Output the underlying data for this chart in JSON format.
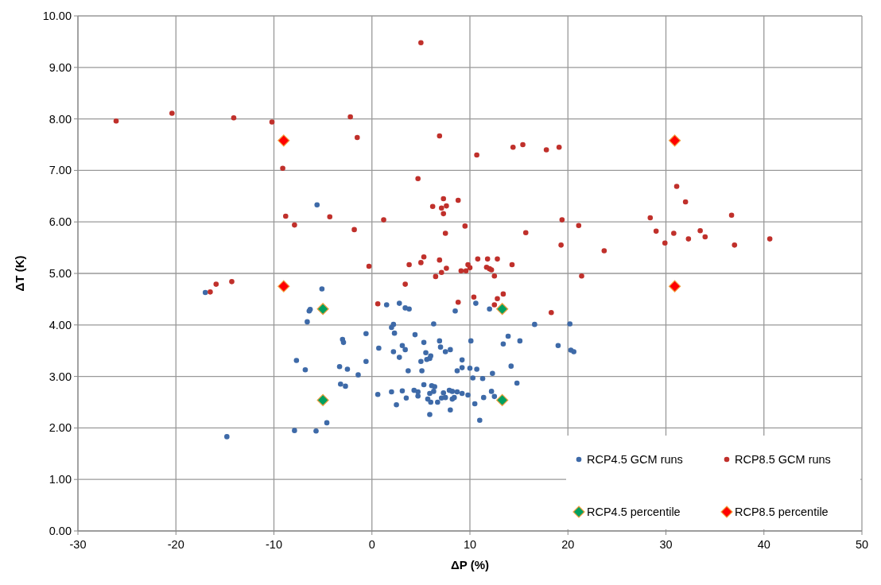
{
  "chart_data": {
    "type": "scatter",
    "xlabel": "ΔP (%)",
    "ylabel": "ΔT (K)",
    "xlim": [
      -30,
      50
    ],
    "xticks": [
      -30,
      -20,
      -10,
      0,
      10,
      20,
      30,
      40,
      50
    ],
    "ylim": [
      0,
      10
    ],
    "yticks": [
      {
        "value": 0,
        "label": "0.00"
      },
      {
        "value": 1,
        "label": "1.00"
      },
      {
        "value": 2,
        "label": "2.00"
      },
      {
        "value": 3,
        "label": "3.00"
      },
      {
        "value": 4,
        "label": "4.00"
      },
      {
        "value": 5,
        "label": "5.00"
      },
      {
        "value": 6,
        "label": "6.00"
      },
      {
        "value": 7,
        "label": "7.00"
      },
      {
        "value": 8,
        "label": "8.00"
      },
      {
        "value": 9,
        "label": "9.00"
      },
      {
        "value": 10,
        "label": "10.00"
      }
    ],
    "grid": true,
    "legend": "bottom right",
    "series": [
      {
        "name": "RCP4.5 GCM runs",
        "color": "#3e6aa8",
        "marker": "circle",
        "x": [
          -17.0,
          -5.1,
          -6.4,
          -6.3,
          -6.6,
          1.5,
          2.8,
          3.4,
          3.8,
          8.5,
          10.6,
          12.0,
          2.2,
          2.0,
          6.3,
          16.6,
          20.2,
          -0.6,
          -3.0,
          -2.9,
          2.3,
          4.4,
          5.3,
          6.9,
          10.1,
          13.9,
          15.1,
          13.4,
          19.0,
          20.3,
          20.6,
          0.7,
          2.2,
          3.1,
          3.4,
          2.8,
          5.5,
          6.0,
          5.9,
          5.6,
          7.0,
          7.5,
          8.0,
          5.0,
          9.2,
          9.2,
          8.7,
          10.0,
          10.7,
          12.3,
          14.2,
          10.3,
          11.3,
          14.8,
          3.7,
          5.1,
          -7.7,
          -6.8,
          -3.3,
          -2.5,
          -0.6,
          -1.4,
          -3.2,
          -2.7,
          0.6,
          2.0,
          3.1,
          3.5,
          2.5,
          4.3,
          4.7,
          4.7,
          5.3,
          5.9,
          6.1,
          6.4,
          6.3,
          5.7,
          6.0,
          6.7,
          7.3,
          7.1,
          7.5,
          7.9,
          8.2,
          8.7,
          8.2,
          8.4,
          9.2,
          9.8,
          5.9,
          8.0,
          10.5,
          11.4,
          12.2,
          12.5,
          11.0,
          -4.6,
          -7.9,
          -5.7,
          -14.8,
          -5.6
        ],
        "values": [
          4.63,
          4.7,
          4.27,
          4.3,
          4.06,
          4.39,
          4.42,
          4.33,
          4.31,
          4.27,
          4.42,
          4.31,
          4.01,
          3.95,
          4.02,
          4.01,
          4.02,
          3.83,
          3.72,
          3.66,
          3.84,
          3.81,
          3.66,
          3.69,
          3.69,
          3.78,
          3.69,
          3.63,
          3.6,
          3.51,
          3.48,
          3.55,
          3.48,
          3.6,
          3.52,
          3.37,
          3.46,
          3.4,
          3.35,
          3.33,
          3.57,
          3.48,
          3.52,
          3.29,
          3.32,
          3.17,
          3.11,
          3.16,
          3.14,
          3.06,
          3.2,
          2.97,
          2.96,
          2.87,
          3.11,
          3.11,
          3.31,
          3.13,
          3.19,
          3.14,
          3.29,
          3.03,
          2.85,
          2.81,
          2.65,
          2.7,
          2.72,
          2.58,
          2.45,
          2.73,
          2.7,
          2.62,
          2.84,
          2.67,
          2.82,
          2.8,
          2.71,
          2.56,
          2.5,
          2.5,
          2.68,
          2.58,
          2.59,
          2.73,
          2.71,
          2.7,
          2.56,
          2.59,
          2.67,
          2.64,
          2.26,
          2.35,
          2.47,
          2.59,
          2.71,
          2.61,
          2.15,
          2.1,
          1.95,
          1.94,
          1.83,
          6.33
        ]
      },
      {
        "name": "RCP8.5 GCM runs",
        "color": "#c0302b",
        "marker": "circle",
        "x": [
          -26.1,
          -20.4,
          -14.1,
          -10.2,
          -2.2,
          -1.5,
          -9.1,
          -8.8,
          -7.9,
          -4.3,
          -1.8,
          1.2,
          -0.3,
          -15.9,
          -16.5,
          -14.3,
          0.6,
          5.0,
          6.9,
          10.7,
          14.4,
          15.4,
          17.8,
          19.1,
          4.7,
          7.3,
          6.2,
          7.1,
          7.6,
          7.3,
          8.8,
          7.5,
          9.5,
          15.7,
          19.4,
          21.1,
          19.3,
          23.7,
          3.8,
          5.0,
          5.3,
          6.9,
          7.6,
          7.1,
          9.1,
          9.6,
          9.8,
          10.0,
          10.8,
          11.8,
          12.8,
          11.7,
          12.0,
          12.2,
          14.3,
          6.5,
          12.5,
          21.4,
          3.4,
          8.8,
          10.4,
          12.8,
          13.4,
          12.5,
          18.3,
          31.1,
          32.0,
          28.4,
          29.0,
          30.8,
          29.9,
          33.5,
          32.3,
          34.0,
          36.7,
          37.0,
          40.6
        ],
        "values": [
          7.96,
          8.11,
          8.02,
          7.94,
          8.04,
          7.64,
          7.04,
          6.11,
          5.94,
          6.1,
          5.85,
          6.04,
          5.14,
          4.79,
          4.64,
          4.84,
          4.41,
          9.48,
          7.67,
          7.3,
          7.45,
          7.5,
          7.4,
          7.45,
          6.84,
          6.45,
          6.3,
          6.27,
          6.31,
          6.16,
          6.42,
          5.78,
          5.92,
          5.79,
          6.04,
          5.93,
          5.55,
          5.44,
          5.17,
          5.21,
          5.32,
          5.26,
          5.1,
          5.02,
          5.05,
          5.05,
          5.17,
          5.11,
          5.28,
          5.28,
          5.28,
          5.12,
          5.09,
          5.07,
          5.17,
          4.94,
          4.95,
          4.95,
          4.79,
          4.44,
          4.54,
          4.51,
          4.6,
          4.39,
          4.24,
          6.69,
          6.39,
          6.08,
          5.82,
          5.78,
          5.59,
          5.83,
          5.67,
          5.71,
          6.13,
          5.55,
          5.67
        ]
      },
      {
        "name": "RCP4.5 percentile",
        "color": "#00a060",
        "marker": "diamond",
        "x": [
          -5.0,
          -5.0,
          13.3,
          13.3
        ],
        "values": [
          4.31,
          2.54,
          4.31,
          2.54
        ]
      },
      {
        "name": "RCP8.5 percentile",
        "color": "#ff0000",
        "marker": "diamond",
        "x": [
          -9.0,
          -9.0,
          30.9,
          30.9
        ],
        "values": [
          7.58,
          4.75,
          7.58,
          4.75
        ]
      }
    ]
  }
}
